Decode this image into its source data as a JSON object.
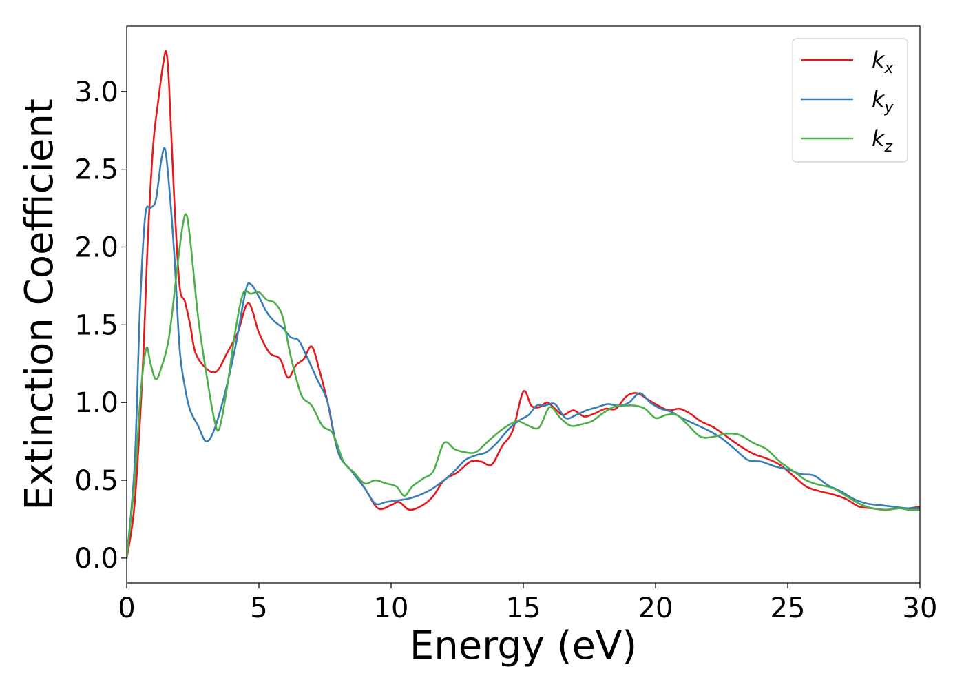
{
  "chart_data": {
    "type": "line",
    "title": "",
    "xlabel": "Energy (eV)",
    "ylabel": "Extinction Coefficient",
    "xlim": [
      0,
      30
    ],
    "ylim": [
      -0.16,
      3.42
    ],
    "xticks": [
      0,
      5,
      10,
      15,
      20,
      25,
      30
    ],
    "xtick_labels": [
      "0",
      "5",
      "10",
      "15",
      "20",
      "25",
      "30"
    ],
    "yticks": [
      0.0,
      0.5,
      1.0,
      1.5,
      2.0,
      2.5,
      3.0
    ],
    "ytick_labels": [
      "0.0",
      "0.5",
      "1.0",
      "1.5",
      "2.0",
      "2.5",
      "3.0"
    ],
    "grid": false,
    "legend_position": "top-right",
    "series": [
      {
        "name": "k",
        "subscript": "x",
        "color": "#e41a1c",
        "x": [
          0,
          0.3,
          0.6,
          0.8,
          1.0,
          1.2,
          1.4,
          1.5,
          1.6,
          1.8,
          2.0,
          2.2,
          2.4,
          2.6,
          3.0,
          3.4,
          3.8,
          4.2,
          4.6,
          5.0,
          5.4,
          5.8,
          6.1,
          6.4,
          6.7,
          7.0,
          7.3,
          7.6,
          8.0,
          8.5,
          9.0,
          9.5,
          10.0,
          10.3,
          10.7,
          11.2,
          11.6,
          12.0,
          12.5,
          13.0,
          13.4,
          13.8,
          14.2,
          14.6,
          15.0,
          15.3,
          15.6,
          15.9,
          16.2,
          16.5,
          16.9,
          17.3,
          17.7,
          18.1,
          18.5,
          18.9,
          19.3,
          19.7,
          20.1,
          20.5,
          20.9,
          21.3,
          21.7,
          22.2,
          22.7,
          23.2,
          23.7,
          24.2,
          24.7,
          25.2,
          25.7,
          26.2,
          26.7,
          27.2,
          27.7,
          28.2,
          28.7,
          29.2,
          29.6,
          30.0
        ],
        "values": [
          0.0,
          0.35,
          1.2,
          2.05,
          2.65,
          2.95,
          3.2,
          3.25,
          3.05,
          2.3,
          1.75,
          1.65,
          1.5,
          1.32,
          1.22,
          1.2,
          1.32,
          1.45,
          1.64,
          1.45,
          1.32,
          1.28,
          1.16,
          1.24,
          1.28,
          1.36,
          1.2,
          1.0,
          0.68,
          0.56,
          0.45,
          0.32,
          0.34,
          0.36,
          0.31,
          0.34,
          0.4,
          0.5,
          0.55,
          0.62,
          0.62,
          0.6,
          0.72,
          0.82,
          1.07,
          0.98,
          0.97,
          1.0,
          0.96,
          0.92,
          0.95,
          0.91,
          0.93,
          0.96,
          0.96,
          1.04,
          1.06,
          1.02,
          0.98,
          0.95,
          0.96,
          0.93,
          0.88,
          0.84,
          0.78,
          0.72,
          0.67,
          0.64,
          0.6,
          0.53,
          0.46,
          0.43,
          0.41,
          0.38,
          0.33,
          0.32,
          0.31,
          0.32,
          0.32,
          0.33
        ]
      },
      {
        "name": "k",
        "subscript": "y",
        "color": "#377eb8",
        "x": [
          0,
          0.3,
          0.5,
          0.7,
          0.9,
          1.1,
          1.3,
          1.45,
          1.6,
          1.8,
          2.0,
          2.2,
          2.4,
          2.7,
          3.0,
          3.3,
          3.7,
          4.1,
          4.5,
          4.7,
          5.0,
          5.3,
          5.6,
          5.9,
          6.2,
          6.5,
          6.8,
          7.2,
          7.6,
          8.0,
          8.5,
          9.0,
          9.4,
          9.8,
          10.2,
          10.6,
          11.0,
          11.5,
          12.0,
          12.4,
          12.8,
          13.2,
          13.6,
          14.0,
          14.4,
          14.8,
          15.2,
          15.5,
          15.8,
          16.2,
          16.6,
          17.0,
          17.4,
          17.8,
          18.2,
          18.6,
          19.0,
          19.4,
          19.8,
          20.2,
          20.6,
          21.0,
          21.5,
          22.0,
          22.5,
          23.0,
          23.5,
          24.0,
          24.5,
          25.0,
          25.5,
          26.0,
          26.5,
          27.0,
          27.5,
          28.0,
          28.5,
          29.0,
          29.5,
          30.0
        ],
        "values": [
          0.0,
          0.6,
          1.6,
          2.2,
          2.25,
          2.3,
          2.55,
          2.63,
          2.4,
          1.95,
          1.35,
          1.1,
          0.95,
          0.85,
          0.75,
          0.82,
          1.05,
          1.35,
          1.72,
          1.76,
          1.68,
          1.58,
          1.52,
          1.48,
          1.42,
          1.4,
          1.3,
          1.15,
          1.0,
          0.68,
          0.56,
          0.45,
          0.35,
          0.36,
          0.37,
          0.38,
          0.4,
          0.44,
          0.5,
          0.56,
          0.63,
          0.66,
          0.68,
          0.74,
          0.82,
          0.88,
          0.92,
          0.98,
          0.98,
          0.99,
          0.9,
          0.92,
          0.95,
          0.97,
          0.99,
          0.98,
          1.0,
          1.06,
          1.0,
          0.96,
          0.94,
          0.9,
          0.86,
          0.82,
          0.77,
          0.7,
          0.63,
          0.62,
          0.59,
          0.57,
          0.54,
          0.53,
          0.47,
          0.43,
          0.38,
          0.35,
          0.34,
          0.33,
          0.32,
          0.32
        ]
      },
      {
        "name": "k",
        "subscript": "z",
        "color": "#4daf4a",
        "x": [
          0,
          0.3,
          0.55,
          0.75,
          0.9,
          1.1,
          1.3,
          1.6,
          1.9,
          2.1,
          2.25,
          2.4,
          2.7,
          3.0,
          3.3,
          3.5,
          3.8,
          4.1,
          4.4,
          4.7,
          5.0,
          5.3,
          5.6,
          5.9,
          6.2,
          6.6,
          7.0,
          7.4,
          7.8,
          8.2,
          8.6,
          9.0,
          9.4,
          9.8,
          10.2,
          10.5,
          10.8,
          11.2,
          11.6,
          12.0,
          12.4,
          12.8,
          13.2,
          13.6,
          14.0,
          14.4,
          14.8,
          15.2,
          15.6,
          16.0,
          16.4,
          16.8,
          17.2,
          17.6,
          18.0,
          18.4,
          18.8,
          19.2,
          19.6,
          20.0,
          20.4,
          20.8,
          21.2,
          21.7,
          22.2,
          22.7,
          23.2,
          23.7,
          24.2,
          24.7,
          25.2,
          25.7,
          26.2,
          26.7,
          27.2,
          27.7,
          28.2,
          28.7,
          29.2,
          29.6,
          30.0
        ],
        "values": [
          0.0,
          0.5,
          1.1,
          1.35,
          1.25,
          1.15,
          1.22,
          1.42,
          1.85,
          2.12,
          2.21,
          2.05,
          1.55,
          1.2,
          0.9,
          0.83,
          1.1,
          1.45,
          1.7,
          1.7,
          1.71,
          1.66,
          1.64,
          1.55,
          1.3,
          1.05,
          0.98,
          0.85,
          0.8,
          0.62,
          0.55,
          0.48,
          0.5,
          0.48,
          0.46,
          0.4,
          0.46,
          0.51,
          0.56,
          0.74,
          0.7,
          0.68,
          0.68,
          0.74,
          0.8,
          0.85,
          0.88,
          0.85,
          0.84,
          0.97,
          0.9,
          0.85,
          0.86,
          0.88,
          0.93,
          0.97,
          0.98,
          0.98,
          0.96,
          0.9,
          0.92,
          0.92,
          0.86,
          0.78,
          0.78,
          0.8,
          0.79,
          0.74,
          0.7,
          0.62,
          0.56,
          0.5,
          0.47,
          0.45,
          0.4,
          0.35,
          0.32,
          0.31,
          0.32,
          0.31,
          0.31
        ]
      }
    ]
  }
}
